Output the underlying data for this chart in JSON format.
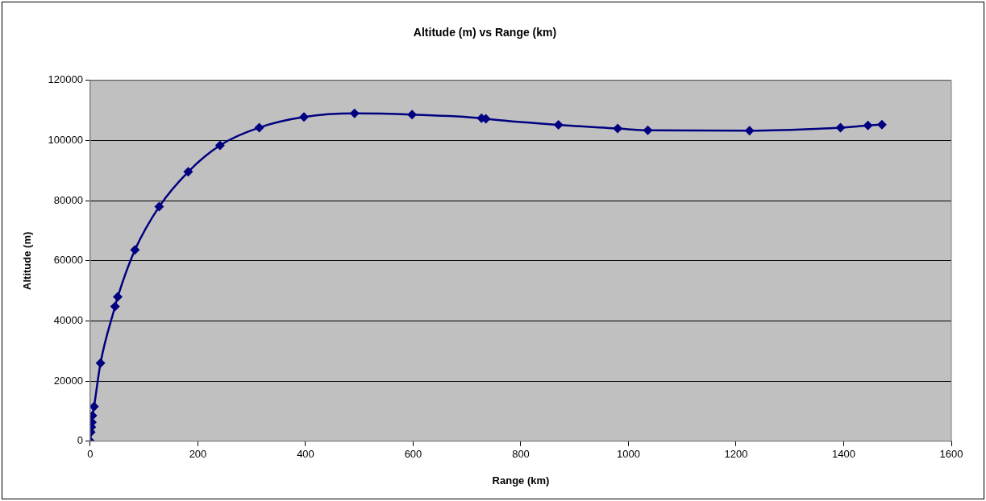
{
  "chart_data": {
    "type": "line",
    "title": "Altitude (m) vs Range (km)",
    "xlabel": "Range (km)",
    "ylabel": "Altitude (m)",
    "series": [
      {
        "color": "#000080",
        "x": [
          0,
          1,
          2,
          3,
          4,
          7,
          19,
          46,
          51,
          83,
          128,
          182,
          241,
          314,
          397,
          491,
          598,
          727,
          735,
          870,
          980,
          1036,
          1225,
          1394,
          1445,
          1471
        ],
        "values": [
          0,
          3000,
          4700,
          6300,
          8500,
          11500,
          26000,
          44800,
          48000,
          63600,
          78000,
          89600,
          98400,
          104300,
          107800,
          109000,
          108600,
          107400,
          107200,
          105200,
          104000,
          103400,
          103300,
          104300,
          105000,
          105300
        ]
      }
    ],
    "xlim": [
      0,
      1600
    ],
    "xticks": [
      0,
      200,
      400,
      600,
      800,
      1000,
      1200,
      1400,
      1600
    ],
    "ylim": [
      0,
      120000
    ],
    "yticks": [
      0,
      20000,
      40000,
      60000,
      80000,
      100000,
      120000
    ],
    "grid": "y",
    "legend": false,
    "marker": "diamond",
    "line_style": "solid"
  }
}
